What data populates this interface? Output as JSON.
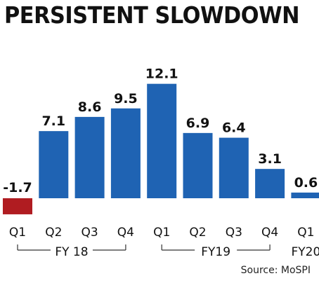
{
  "title": "PERSISTENT SLOWDOWN",
  "source": "Source: MoSPI",
  "colors": {
    "positive": "#1f63b3",
    "negative": "#b01c21",
    "text": "#111111",
    "bracket": "#333333"
  },
  "chart_data": {
    "type": "bar",
    "title": "PERSISTENT SLOWDOWN",
    "categories": [
      "Q1",
      "Q2",
      "Q3",
      "Q4",
      "Q1",
      "Q2",
      "Q3",
      "Q4",
      "Q1"
    ],
    "values": [
      -1.7,
      7.1,
      8.6,
      9.5,
      12.1,
      6.9,
      6.4,
      3.1,
      0.6
    ],
    "data_labels": [
      "-1.7",
      "7.1",
      "8.6",
      "9.5",
      "12.1",
      "6.9",
      "6.4",
      "3.1",
      "0.6"
    ],
    "groups": [
      {
        "label": "FY 18",
        "from": 0,
        "to": 3
      },
      {
        "label": "FY19",
        "from": 4,
        "to": 7
      },
      {
        "label": "FY20",
        "from": 8,
        "to": 8
      }
    ],
    "ylim": [
      -1.7,
      12.1
    ],
    "grid": false,
    "legend": "none"
  }
}
